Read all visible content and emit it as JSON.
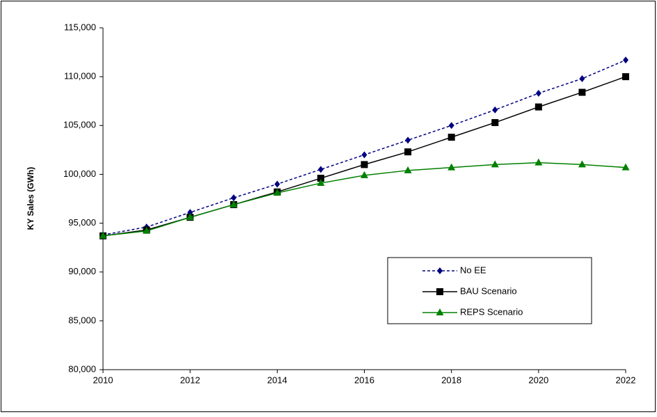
{
  "chart_data": {
    "type": "line",
    "y_label": "KY Sales (GWh)",
    "x": [
      2010,
      2011,
      2012,
      2013,
      2014,
      2015,
      2016,
      2017,
      2018,
      2019,
      2020,
      2021,
      2022
    ],
    "series": [
      {
        "name": "No EE",
        "color": "#000080",
        "marker": "diamond",
        "dashed": true,
        "values": [
          93800,
          94600,
          96100,
          97600,
          99000,
          100500,
          102000,
          103500,
          105000,
          106600,
          108300,
          109800,
          111700
        ]
      },
      {
        "name": "BAU Scenario",
        "color": "#000000",
        "marker": "square",
        "dashed": false,
        "values": [
          93700,
          94300,
          95600,
          96900,
          98200,
          99600,
          101000,
          102300,
          103800,
          105300,
          106900,
          108400,
          110000
        ]
      },
      {
        "name": "REPS Scenario",
        "color": "#008000",
        "marker": "triangle",
        "dashed": false,
        "values": [
          93700,
          94200,
          95600,
          96900,
          98100,
          99100,
          99900,
          100400,
          100700,
          101000,
          101200,
          101000,
          100700
        ]
      }
    ],
    "xlim": [
      2010,
      2022
    ],
    "xticks": [
      2010,
      2012,
      2014,
      2016,
      2018,
      2020,
      2022
    ],
    "ylim": [
      80000,
      115000
    ],
    "yticks": [
      {
        "value": 80000,
        "label": "80,000"
      },
      {
        "value": 85000,
        "label": "85,000"
      },
      {
        "value": 90000,
        "label": "90,000"
      },
      {
        "value": 95000,
        "label": "95,000"
      },
      {
        "value": 100000,
        "label": "100,000"
      },
      {
        "value": 105000,
        "label": "105,000"
      },
      {
        "value": 110000,
        "label": "110,000"
      },
      {
        "value": 115000,
        "label": "115,000"
      }
    ],
    "grid": false,
    "legend": "lower right"
  }
}
